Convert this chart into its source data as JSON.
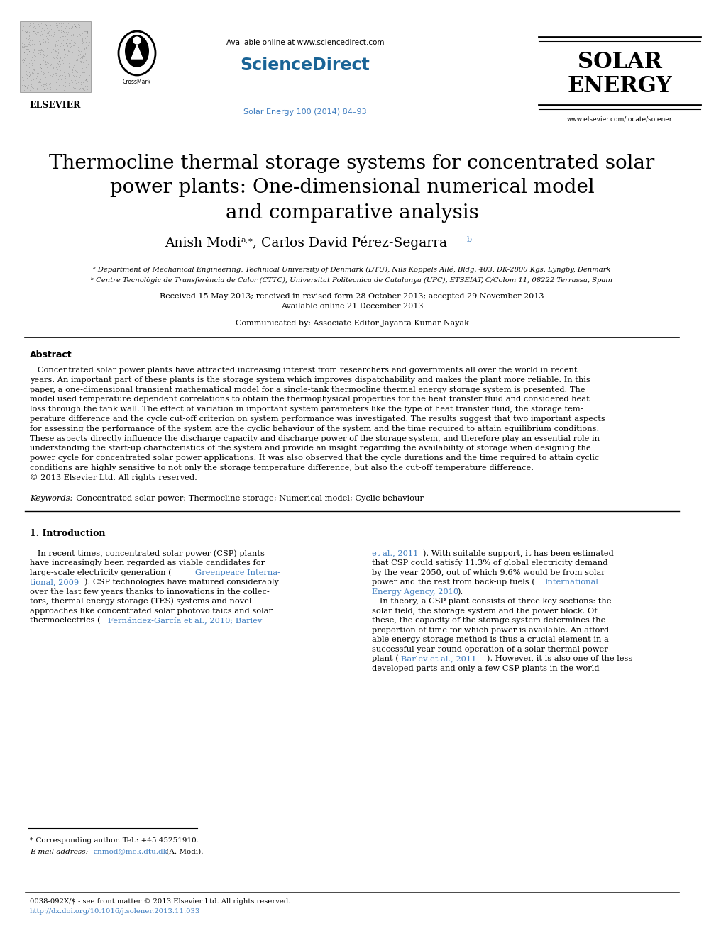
{
  "bg_color": "#ffffff",
  "available_online": "Available online at www.sciencedirect.com",
  "sciencedirect_text": "ScienceDirect",
  "journal_ref": "Solar Energy 100 (2014) 84–93",
  "solar_line1": "SOLAR",
  "solar_line2": "ENERGY",
  "website": "www.elsevier.com/locate/solener",
  "elsevier_text": "ELSEVIER",
  "title_line1": "Thermocline thermal storage systems for concentrated solar",
  "title_line2": "power plants: One-dimensional numerical model",
  "title_line3": "and comparative analysis",
  "author_name1": "Anish Modi",
  "author_sup1": "a,∗",
  "author_comma": ", Carlos David Pérez-Segarra",
  "author_sup2": "b",
  "affil_a": "ᵃ Department of Mechanical Engineering, Technical University of Denmark (DTU), Nils Koppels Allé, Bldg. 403, DK-2800 Kgs. Lyngby, Denmark",
  "affil_b": "ᵇ Centre Tecnològic de Transferència de Calor (CTTC), Universitat Politècnica de Catalunya (UPC), ETSEIAT, C/Colom 11, 08222 Terrassa, Spain",
  "received_line": "Received 15 May 2013; received in revised form 28 October 2013; accepted 29 November 2013",
  "available_line": "Available online 21 December 2013",
  "communicated": "Communicated by: Associate Editor Jayanta Kumar Nayak",
  "abstract_head": "Abstract",
  "abstract_lines": [
    "   Concentrated solar power plants have attracted increasing interest from researchers and governments all over the world in recent",
    "years. An important part of these plants is the storage system which improves dispatchability and makes the plant more reliable. In this",
    "paper, a one-dimensional transient mathematical model for a single-tank thermocline thermal energy storage system is presented. The",
    "model used temperature dependent correlations to obtain the thermophysical properties for the heat transfer fluid and considered heat",
    "loss through the tank wall. The effect of variation in important system parameters like the type of heat transfer fluid, the storage tem-",
    "perature difference and the cycle cut-off criterion on system performance was investigated. The results suggest that two important aspects",
    "for assessing the performance of the system are the cyclic behaviour of the system and the time required to attain equilibrium conditions.",
    "These aspects directly influence the discharge capacity and discharge power of the storage system, and therefore play an essential role in",
    "understanding the start-up characteristics of the system and provide an insight regarding the availability of storage when designing the",
    "power cycle for concentrated solar power applications. It was also observed that the cycle durations and the time required to attain cyclic",
    "conditions are highly sensitive to not only the storage temperature difference, but also the cut-off temperature difference.",
    "© 2013 Elsevier Ltd. All rights reserved."
  ],
  "kw_italic": "Keywords:",
  "kw_normal": "  Concentrated solar power; Thermocline storage; Numerical model; Cyclic behaviour",
  "sec1_title": "1. Introduction",
  "col1_lines": [
    "   In recent times, concentrated solar power (CSP) plants",
    "have increasingly been regarded as viable candidates for",
    "large-scale electricity generation (",
    "tional, 2009",
    "). CSP technologies have matured considerably",
    "over the last few years thanks to innovations in the collec-",
    "tors, thermal energy storage (TES) systems and novel",
    "approaches like concentrated solar photovoltaics and solar",
    "thermoelectrics ("
  ],
  "col1_greenpeace_line": "Greenpeace Interna-",
  "col1_barlev_line": "Fernández-García et al., 2010; Barlev",
  "col2_lines": [
    "et al., 2011",
    "). With suitable support, it has been estimated",
    "that CSP could satisfy 11.3% of global electricity demand",
    "by the year 2050, out of which 9.6% would be from solar",
    "power and the rest from back-up fuels (",
    "Energy Agency, 2010",
    ").",
    "   In theory, a CSP plant consists of three key sections: the",
    "solar field, the storage system and the power block. Of",
    "these, the capacity of the storage system determines the",
    "proportion of time for which power is available. An afford-",
    "able energy storage method is thus a crucial element in a",
    "successful year-round operation of a solar thermal power",
    "plant (",
    "Barlev et al., 2011",
    "). However, it is also one of the less",
    "developed parts and only a few CSP plants in the world"
  ],
  "footnote1": "* Corresponding author. Tel.: +45 45251910.",
  "footnote2a": "E-mail address: ",
  "footnote2b": "anmod@mek.dtu.dk",
  "footnote2c": " (A. Modi).",
  "bottom1": "0038-092X/$ - see front matter © 2013 Elsevier Ltd. All rights reserved.",
  "bottom2": "http://dx.doi.org/10.1016/j.solener.2013.11.033",
  "link_color": "#3c7bbf",
  "green_color": "#3c7bbf",
  "sciencedirect_color": "#1a6496",
  "journal_ref_color": "#3c7bbf"
}
